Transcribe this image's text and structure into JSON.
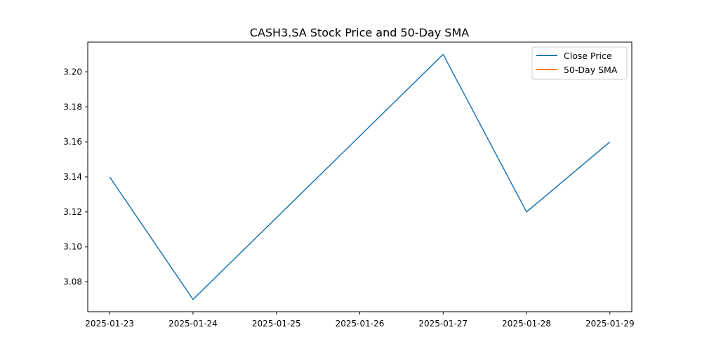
{
  "chart_data": {
    "type": "line",
    "title": "CASH3.SA Stock Price and 50-Day SMA",
    "xlabel": "",
    "ylabel": "",
    "x": [
      "2025-01-23",
      "2025-01-24",
      "2025-01-25",
      "2025-01-26",
      "2025-01-27",
      "2025-01-28",
      "2025-01-29"
    ],
    "series": [
      {
        "name": "Close Price",
        "color": "#1f77b4",
        "points": [
          {
            "x": "2025-01-23",
            "y": 3.14
          },
          {
            "x": "2025-01-24",
            "y": 3.07
          },
          {
            "x": "2025-01-27",
            "y": 3.21
          },
          {
            "x": "2025-01-28",
            "y": 3.12
          },
          {
            "x": "2025-01-29",
            "y": 3.16
          }
        ]
      },
      {
        "name": "50-Day SMA",
        "color": "#ff7f0e",
        "points": []
      }
    ],
    "xticks": [
      "2025-01-23",
      "2025-01-24",
      "2025-01-25",
      "2025-01-26",
      "2025-01-27",
      "2025-01-28",
      "2025-01-29"
    ],
    "yticks": [
      "3.08",
      "3.10",
      "3.12",
      "3.14",
      "3.16",
      "3.18",
      "3.20"
    ],
    "xlim": [
      "2025-01-22T17:42",
      "2025-01-29T06:18"
    ],
    "ylim": [
      3.063,
      3.217
    ],
    "grid": false,
    "legend": "upper right"
  }
}
